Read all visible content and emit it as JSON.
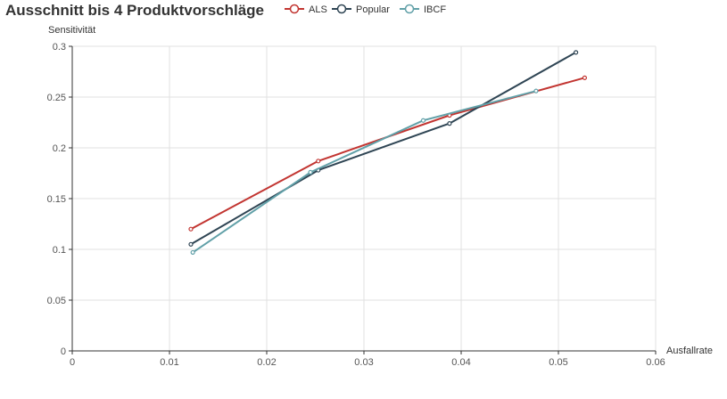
{
  "chart_data": {
    "type": "line",
    "title": "Ausschnitt bis 4 Produktvorschläge",
    "xlabel": "Ausfallrate",
    "ylabel": "Sensitivität",
    "xlim": [
      0,
      0.06
    ],
    "ylim": [
      0,
      0.3
    ],
    "x_ticks": [
      "0",
      "0.01",
      "0.02",
      "0.03",
      "0.04",
      "0.05",
      "0.06"
    ],
    "y_ticks": [
      "0",
      "0.05",
      "0.1",
      "0.15",
      "0.2",
      "0.25",
      "0.3"
    ],
    "grid": true,
    "legend_position": "top",
    "series": [
      {
        "name": "ALS",
        "color": "#c23531",
        "points": [
          [
            0.0122,
            0.12
          ],
          [
            0.0253,
            0.187
          ],
          [
            0.0388,
            0.232
          ],
          [
            0.0527,
            0.269
          ]
        ]
      },
      {
        "name": "Popular",
        "color": "#2f4554",
        "points": [
          [
            0.0122,
            0.105
          ],
          [
            0.0253,
            0.178
          ],
          [
            0.0388,
            0.224
          ],
          [
            0.0518,
            0.294
          ]
        ]
      },
      {
        "name": "IBCF",
        "color": "#61a0a8",
        "points": [
          [
            0.0124,
            0.097
          ],
          [
            0.0245,
            0.176
          ],
          [
            0.0361,
            0.227
          ],
          [
            0.0477,
            0.256
          ]
        ]
      }
    ]
  }
}
